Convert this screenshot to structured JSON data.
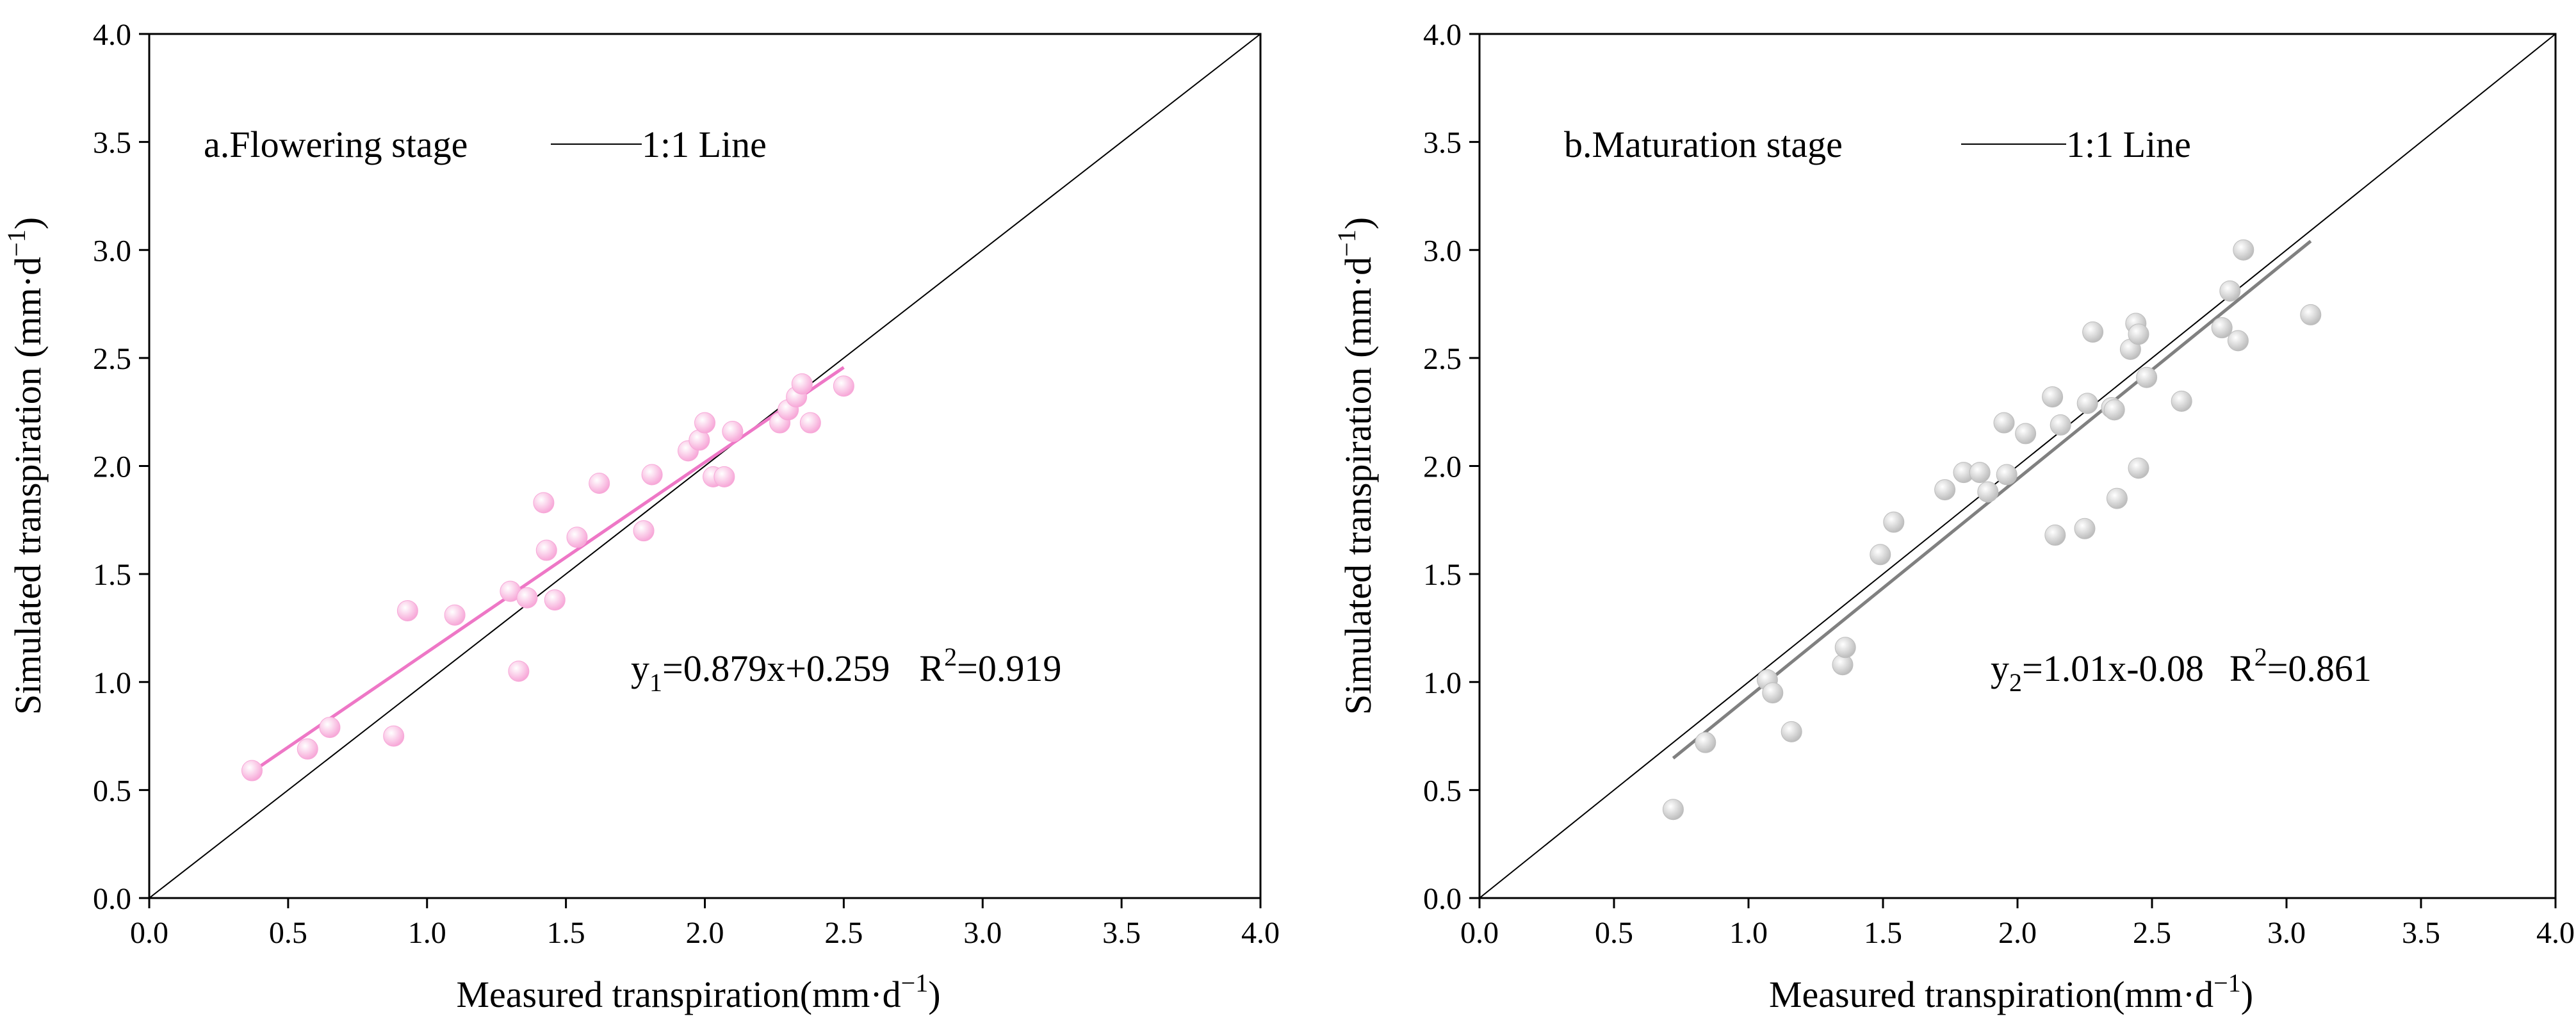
{
  "chart_data": [
    {
      "type": "scatter",
      "panel_label": "a.Flowering stage",
      "legend_label": "1:1 Line",
      "xlabel_main": "Measured transpiration(mm·d",
      "xlabel_sup": "−1",
      "xlabel_close": ")",
      "ylabel_main": "Simulated transpiration (mm·d",
      "ylabel_sup": "−1",
      "ylabel_close": ")",
      "xlim": [
        0,
        4
      ],
      "ylim": [
        0,
        4
      ],
      "xticks": [
        "0.0",
        "0.5",
        "1.0",
        "1.5",
        "2.0",
        "2.5",
        "3.0",
        "3.5",
        "4.0"
      ],
      "yticks": [
        "0.0",
        "0.5",
        "1.0",
        "1.5",
        "2.0",
        "2.5",
        "3.0",
        "3.5",
        "4.0"
      ],
      "point_color": "#f7a8d8",
      "fit_color": "#ee77c6",
      "fit": {
        "slope": 0.879,
        "intercept": 0.259,
        "x_range": [
          0.37,
          2.5
        ]
      },
      "equation": {
        "y": "y",
        "sub": "1",
        "rhs": "=0.879x+0.259",
        "r_label": "R",
        "r_sup": "2",
        "r_value": "=0.919"
      },
      "points": [
        [
          0.37,
          0.59
        ],
        [
          0.57,
          0.69
        ],
        [
          0.65,
          0.79
        ],
        [
          0.88,
          0.75
        ],
        [
          0.93,
          1.33
        ],
        [
          1.1,
          1.31
        ],
        [
          1.3,
          1.42
        ],
        [
          1.33,
          1.05
        ],
        [
          1.36,
          1.39
        ],
        [
          1.42,
          1.83
        ],
        [
          1.43,
          1.61
        ],
        [
          1.46,
          1.38
        ],
        [
          1.54,
          1.67
        ],
        [
          1.62,
          1.92
        ],
        [
          1.78,
          1.7
        ],
        [
          1.81,
          1.96
        ],
        [
          1.94,
          2.07
        ],
        [
          1.98,
          2.12
        ],
        [
          2.0,
          2.2
        ],
        [
          2.03,
          1.95
        ],
        [
          2.07,
          1.95
        ],
        [
          2.1,
          2.16
        ],
        [
          2.27,
          2.2
        ],
        [
          2.3,
          2.26
        ],
        [
          2.33,
          2.32
        ],
        [
          2.35,
          2.38
        ],
        [
          2.38,
          2.2
        ],
        [
          2.5,
          2.37
        ]
      ]
    },
    {
      "type": "scatter",
      "panel_label": "b.Maturation stage",
      "legend_label": "1:1 Line",
      "xlabel_main": "Measured transpiration(mm·d",
      "xlabel_sup": "−1",
      "xlabel_close": ")",
      "ylabel_main": "Simulated transpiration (mm·d",
      "ylabel_sup": "−1",
      "ylabel_close": ")",
      "xlim": [
        0,
        4
      ],
      "ylim": [
        0,
        4
      ],
      "xticks": [
        "0.0",
        "0.5",
        "1.0",
        "1.5",
        "2.0",
        "2.5",
        "3.0",
        "3.5",
        "4.0"
      ],
      "yticks": [
        "0.0",
        "0.5",
        "1.0",
        "1.5",
        "2.0",
        "2.5",
        "3.0",
        "3.5",
        "4.0"
      ],
      "point_color": "#bdbdbd",
      "fit_color": "#808080",
      "fit": {
        "slope": 1.01,
        "intercept": -0.08,
        "x_range": [
          0.72,
          3.09
        ]
      },
      "equation": {
        "y": "y",
        "sub": "2",
        "rhs": "=1.01x-0.08",
        "r_label": "R",
        "r_sup": "2",
        "r_value": "=0.861"
      },
      "points": [
        [
          0.72,
          0.41
        ],
        [
          0.84,
          0.72
        ],
        [
          1.07,
          1.01
        ],
        [
          1.09,
          0.95
        ],
        [
          1.16,
          0.77
        ],
        [
          1.35,
          1.08
        ],
        [
          1.36,
          1.16
        ],
        [
          1.49,
          1.59
        ],
        [
          1.54,
          1.74
        ],
        [
          1.73,
          1.89
        ],
        [
          1.8,
          1.97
        ],
        [
          1.86,
          1.97
        ],
        [
          1.89,
          1.88
        ],
        [
          1.95,
          2.2
        ],
        [
          1.96,
          1.96
        ],
        [
          2.03,
          2.15
        ],
        [
          2.13,
          2.32
        ],
        [
          2.14,
          1.68
        ],
        [
          2.16,
          2.19
        ],
        [
          2.25,
          1.71
        ],
        [
          2.26,
          2.29
        ],
        [
          2.28,
          2.62
        ],
        [
          2.35,
          2.27
        ],
        [
          2.36,
          2.26
        ],
        [
          2.37,
          1.85
        ],
        [
          2.42,
          2.54
        ],
        [
          2.44,
          2.66
        ],
        [
          2.45,
          2.61
        ],
        [
          2.45,
          1.99
        ],
        [
          2.48,
          2.41
        ],
        [
          2.61,
          2.3
        ],
        [
          2.76,
          2.64
        ],
        [
          2.79,
          2.81
        ],
        [
          2.82,
          2.58
        ],
        [
          2.84,
          3.0
        ],
        [
          3.09,
          2.7
        ]
      ]
    }
  ]
}
